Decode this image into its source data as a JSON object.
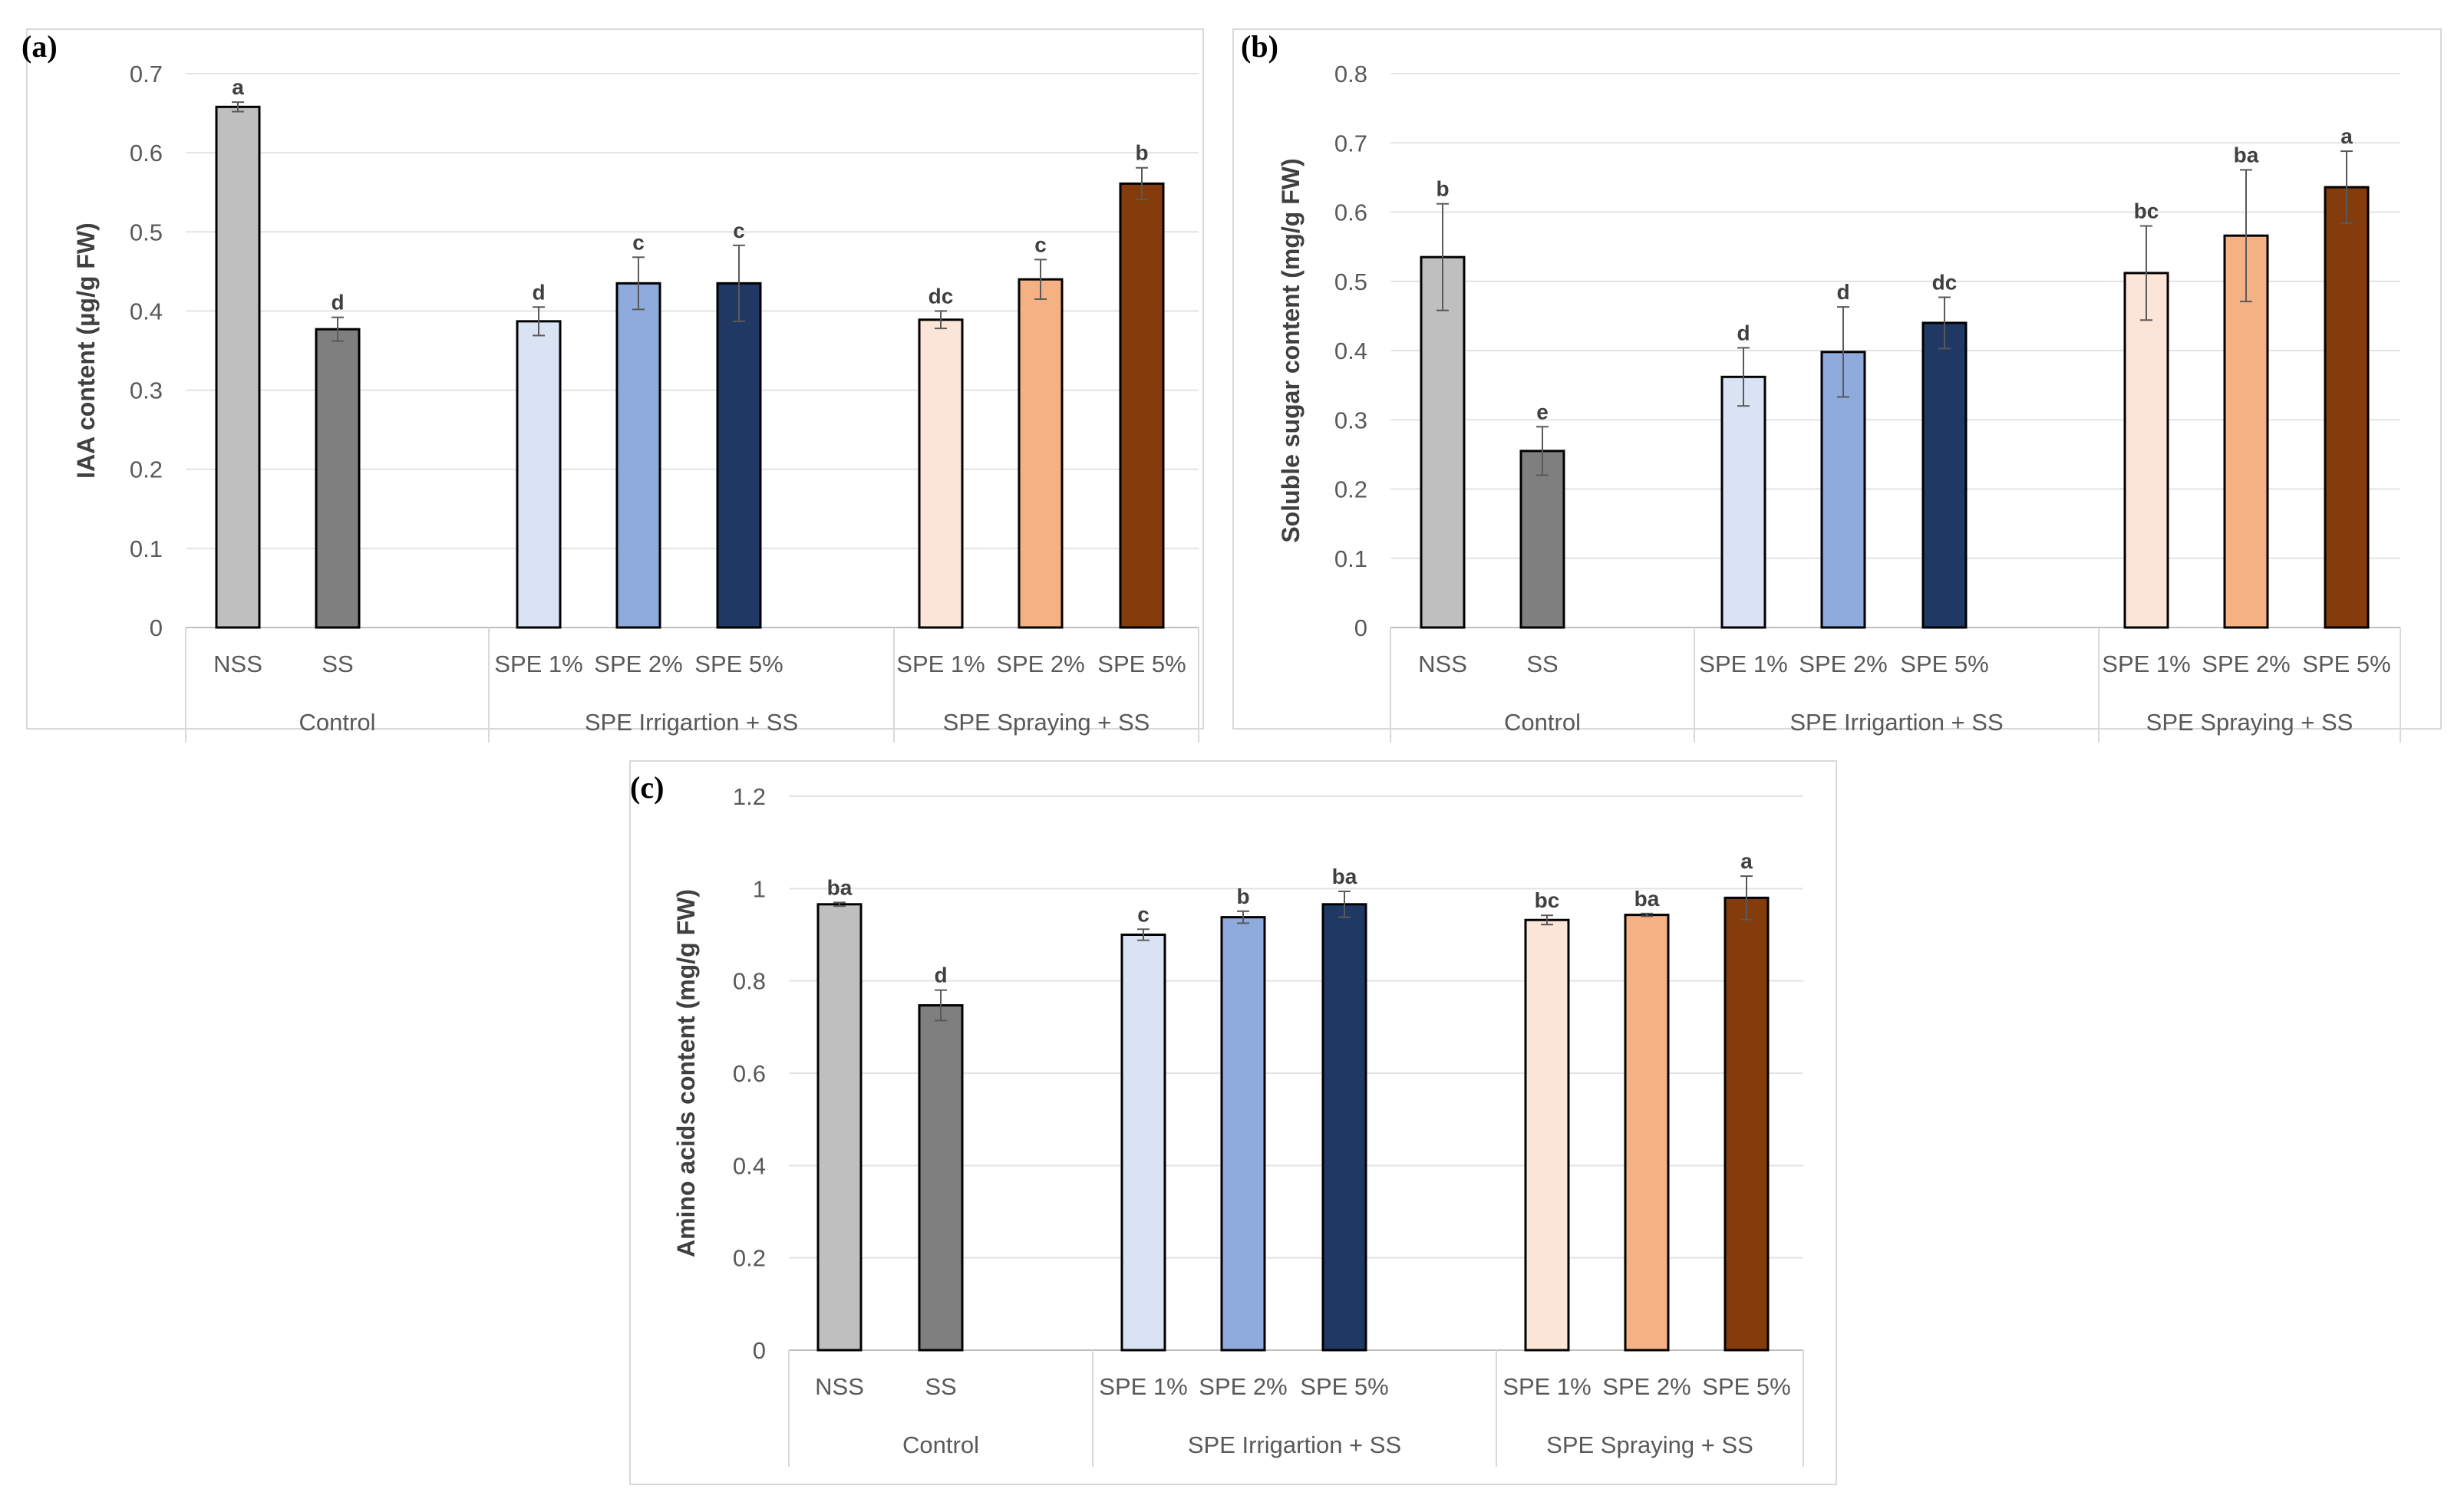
{
  "chart_data": [
    {
      "panel": "(a)",
      "type": "bar",
      "ylabel": "IAA content (µg/g FW)",
      "ylim": [
        0,
        0.7
      ],
      "yticks": [
        0,
        0.1,
        0.2,
        0.3,
        0.4,
        0.5,
        0.6,
        0.7
      ],
      "ytick_labels": [
        "0",
        "0.1",
        "0.2",
        "0.3",
        "0.4",
        "0.5",
        "0.6",
        "0.7"
      ],
      "grid": true,
      "groups": [
        {
          "label": "Control",
          "bars": [
            {
              "label": "NSS",
              "value": 0.658,
              "error": 0.006,
              "sig": "a",
              "color": "#bfbfbf"
            },
            {
              "label": "SS",
              "value": 0.377,
              "error": 0.015,
              "sig": "d",
              "color": "#7f7f7f"
            }
          ]
        },
        {
          "label": "SPE Irrigartion + SS",
          "bars": [
            {
              "label": "SPE 1%",
              "value": 0.387,
              "error": 0.018,
              "sig": "d",
              "color": "#dae3f3"
            },
            {
              "label": "SPE 2%",
              "value": 0.435,
              "error": 0.033,
              "sig": "c",
              "color": "#8faadc"
            },
            {
              "label": "SPE 5%",
              "value": 0.435,
              "error": 0.048,
              "sig": "c",
              "color": "#203864"
            }
          ]
        },
        {
          "label": "SPE Spraying + SS",
          "bars": [
            {
              "label": "SPE 1%",
              "value": 0.389,
              "error": 0.011,
              "sig": "dc",
              "color": "#fbe5d6"
            },
            {
              "label": "SPE 2%",
              "value": 0.44,
              "error": 0.025,
              "sig": "c",
              "color": "#f4b183"
            },
            {
              "label": "SPE 5%",
              "value": 0.561,
              "error": 0.02,
              "sig": "b",
              "color": "#843c0c"
            }
          ]
        }
      ]
    },
    {
      "panel": "(b)",
      "type": "bar",
      "ylabel": "Soluble sugar content (mg/g FW)",
      "ylim": [
        0,
        0.8
      ],
      "yticks": [
        0,
        0.1,
        0.2,
        0.3,
        0.4,
        0.5,
        0.6,
        0.7,
        0.8
      ],
      "ytick_labels": [
        "0",
        "0.1",
        "0.2",
        "0.3",
        "0.4",
        "0.5",
        "0.6",
        "0.7",
        "0.8"
      ],
      "grid": true,
      "groups": [
        {
          "label": "Control",
          "bars": [
            {
              "label": "NSS",
              "value": 0.535,
              "error": 0.077,
              "sig": "b",
              "color": "#bfbfbf"
            },
            {
              "label": "SS",
              "value": 0.255,
              "error": 0.035,
              "sig": "e",
              "color": "#7f7f7f"
            }
          ]
        },
        {
          "label": "SPE Irrigartion + SS",
          "bars": [
            {
              "label": "SPE 1%",
              "value": 0.362,
              "error": 0.042,
              "sig": "d",
              "color": "#dae3f3"
            },
            {
              "label": "SPE 2%",
              "value": 0.398,
              "error": 0.065,
              "sig": "d",
              "color": "#8faadc"
            },
            {
              "label": "SPE 5%",
              "value": 0.44,
              "error": 0.037,
              "sig": "dc",
              "color": "#203864"
            }
          ]
        },
        {
          "label": "SPE Spraying + SS",
          "bars": [
            {
              "label": "SPE 1%",
              "value": 0.512,
              "error": 0.068,
              "sig": "bc",
              "color": "#fbe5d6"
            },
            {
              "label": "SPE 2%",
              "value": 0.566,
              "error": 0.095,
              "sig": "ba",
              "color": "#f4b183"
            },
            {
              "label": "SPE 5%",
              "value": 0.636,
              "error": 0.052,
              "sig": "a",
              "color": "#843c0c"
            }
          ]
        }
      ]
    },
    {
      "panel": "(c)",
      "type": "bar",
      "ylabel": "Amino acids content (mg/g FW)",
      "ylim": [
        0,
        1.2
      ],
      "yticks": [
        0,
        0.2,
        0.4,
        0.6,
        0.8,
        1.0,
        1.2
      ],
      "ytick_labels": [
        "0",
        "0.2",
        "0.4",
        "0.6",
        "0.8",
        "1",
        "1.2"
      ],
      "grid": true,
      "groups": [
        {
          "label": "Control",
          "bars": [
            {
              "label": "NSS",
              "value": 0.966,
              "error": 0.004,
              "sig": "ba",
              "color": "#bfbfbf"
            },
            {
              "label": "SS",
              "value": 0.747,
              "error": 0.033,
              "sig": "d",
              "color": "#7f7f7f"
            }
          ]
        },
        {
          "label": "SPE Irrigartion + SS",
          "bars": [
            {
              "label": "SPE 1%",
              "value": 0.9,
              "error": 0.012,
              "sig": "c",
              "color": "#dae3f3"
            },
            {
              "label": "SPE 2%",
              "value": 0.938,
              "error": 0.013,
              "sig": "b",
              "color": "#8faadc"
            },
            {
              "label": "SPE 5%",
              "value": 0.966,
              "error": 0.028,
              "sig": "ba",
              "color": "#203864"
            }
          ]
        },
        {
          "label": "SPE Spraying + SS",
          "bars": [
            {
              "label": "SPE 1%",
              "value": 0.932,
              "error": 0.01,
              "sig": "bc",
              "color": "#fbe5d6"
            },
            {
              "label": "SPE 2%",
              "value": 0.943,
              "error": 0.003,
              "sig": "ba",
              "color": "#f4b183"
            },
            {
              "label": "SPE 5%",
              "value": 0.98,
              "error": 0.047,
              "sig": "a",
              "color": "#843c0c"
            }
          ]
        }
      ]
    }
  ]
}
